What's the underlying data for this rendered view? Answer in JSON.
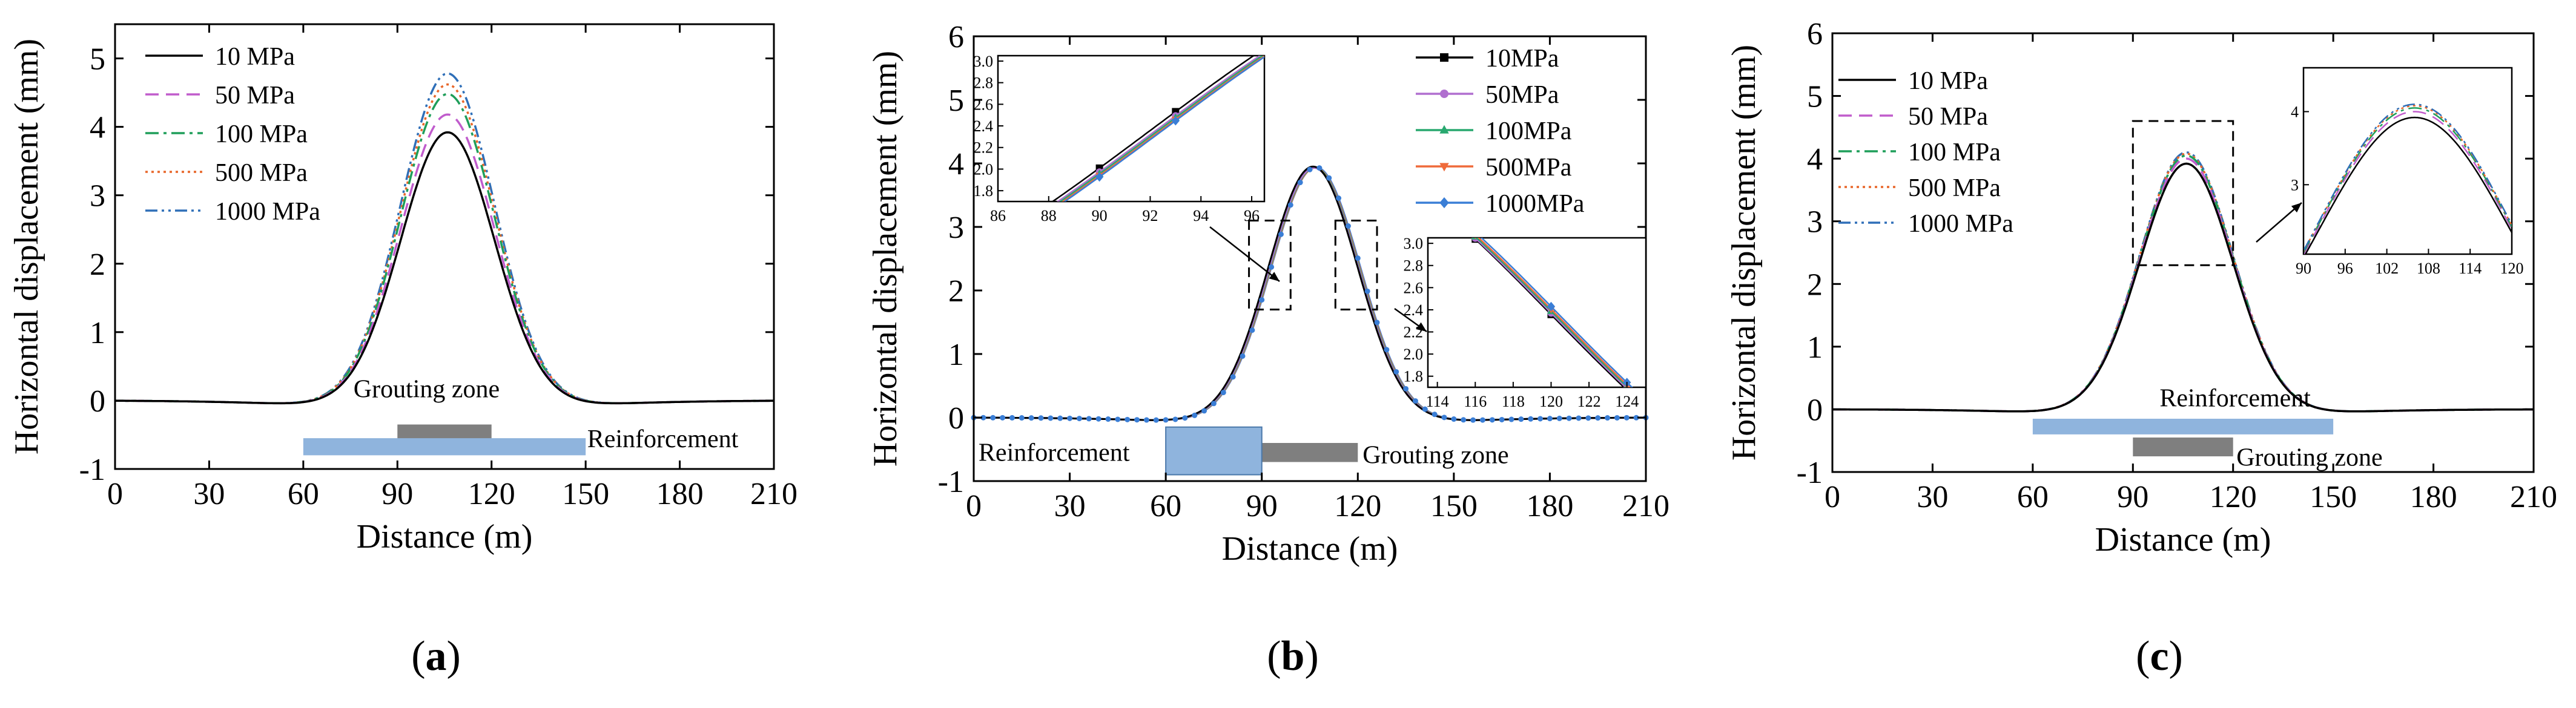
{
  "chart_data": [
    {
      "id": "a",
      "type": "line",
      "panel_label": "a",
      "xlabel": "Distance (m)",
      "ylabel": "Horizontal displacement (mm)",
      "xlim": [
        0,
        210
      ],
      "ylim": [
        -1,
        5.5
      ],
      "xticks": [
        0,
        30,
        60,
        90,
        120,
        150,
        180,
        210
      ],
      "yticks": [
        -1,
        0,
        1,
        2,
        3,
        4,
        5
      ],
      "legend_position": "top-left",
      "curve_model": {
        "center": 106,
        "sigma": 15,
        "trough": -0.12
      },
      "series": [
        {
          "name": "10 MPa",
          "peak": 3.92,
          "color": "#000000",
          "dash": "solid"
        },
        {
          "name": "50 MPa",
          "peak": 4.18,
          "color": "#c05ccc",
          "dash": "dash"
        },
        {
          "name": "100 MPa",
          "peak": 4.48,
          "color": "#1f9e5a",
          "dash": "dashdot"
        },
        {
          "name": "500 MPa",
          "peak": 4.62,
          "color": "#e8672a",
          "dash": "dot"
        },
        {
          "name": "1000 MPa",
          "peak": 4.78,
          "color": "#2f6fb8",
          "dash": "dashdotdot"
        }
      ],
      "zones": [
        {
          "label": "Grouting zone",
          "x0": 90,
          "x1": 120,
          "y0": -0.35,
          "y1": -0.6,
          "color": "#7f7f7f",
          "label_x": 76,
          "label_y": 0.05
        },
        {
          "label": "Reinforcement",
          "x0": 60,
          "x1": 150,
          "y0": -0.55,
          "y1": -0.8,
          "color": "#8fb4dd",
          "label_x": 150.5,
          "label_y": -0.68
        }
      ]
    },
    {
      "id": "b",
      "type": "line",
      "panel_label": "b",
      "xlabel": "Distance (m)",
      "ylabel": "Horizontal displacement (mm)",
      "xlim": [
        0,
        210
      ],
      "ylim": [
        -1,
        6
      ],
      "xticks": [
        0,
        30,
        60,
        90,
        120,
        150,
        180,
        210
      ],
      "yticks": [
        -1,
        0,
        1,
        2,
        3,
        4,
        5,
        6
      ],
      "legend_position": "top-right",
      "curve_model": {
        "center": 106,
        "sigma": 14,
        "trough": -0.12
      },
      "series": [
        {
          "name": "10MPa",
          "peak": 3.95,
          "color": "#000000",
          "marker": "square",
          "shift": 0
        },
        {
          "name": "50MPa",
          "peak": 3.93,
          "color": "#b06fcf",
          "marker": "circle",
          "shift": 0.3
        },
        {
          "name": "100MPa",
          "peak": 3.93,
          "color": "#28a86f",
          "marker": "triangle",
          "shift": 0.5
        },
        {
          "name": "500MPa",
          "peak": 3.93,
          "color": "#ef6a3a",
          "marker": "triangle-down",
          "shift": 0.7
        },
        {
          "name": "1000MPa",
          "peak": 3.94,
          "color": "#3a7ed6",
          "marker": "diamond",
          "shift": 0.9
        }
      ],
      "zones": [
        {
          "label": "Grouting zone",
          "x0": 90,
          "x1": 120,
          "y0": -0.4,
          "y1": -0.7,
          "color": "#7f7f7f",
          "label_x": 121.5,
          "label_y": -0.72
        },
        {
          "label": "Reinforcement",
          "x0": 60,
          "x1": 90,
          "y0": -0.15,
          "y1": -0.9,
          "color": "#8fb4dd",
          "label_x": 1.5,
          "label_y": -0.68
        }
      ],
      "insets": [
        {
          "id": "b-inset-left",
          "xlim": [
            86,
            96.5
          ],
          "ylim": [
            1.7,
            3.05
          ],
          "xticks": [
            86,
            88,
            90,
            92,
            94,
            96
          ],
          "yticks": [
            "1.8",
            "2.0",
            "2.2",
            "2.4",
            "2.6",
            "2.8",
            "3.0"
          ],
          "box": {
            "x0": 86,
            "x1": 99,
            "y0": 1.7,
            "y1": 3.1
          }
        },
        {
          "id": "b-inset-right",
          "xlim": [
            113.5,
            125
          ],
          "ylim": [
            1.7,
            3.05
          ],
          "xticks": [
            114,
            116,
            118,
            120,
            122,
            124
          ],
          "yticks": [
            "1.8",
            "2.0",
            "2.2",
            "2.4",
            "2.6",
            "2.8",
            "3.0"
          ],
          "box": {
            "x0": 113,
            "x1": 126,
            "y0": 1.7,
            "y1": 3.1
          }
        }
      ]
    },
    {
      "id": "c",
      "type": "line",
      "panel_label": "c",
      "xlabel": "Distance (m)",
      "ylabel": "Horizontal displacement (mm)",
      "xlim": [
        0,
        210
      ],
      "ylim": [
        -1,
        6
      ],
      "xticks": [
        0,
        30,
        60,
        90,
        120,
        150,
        180,
        210
      ],
      "yticks": [
        -1,
        0,
        1,
        2,
        3,
        4,
        5,
        6
      ],
      "legend_position": "top-left",
      "curve_model": {
        "center": 106,
        "sigma": 14,
        "trough": -0.1
      },
      "series": [
        {
          "name": "10 MPa",
          "peak": 3.92,
          "color": "#000000",
          "dash": "solid"
        },
        {
          "name": "50 MPa",
          "peak": 4.0,
          "color": "#c05ccc",
          "dash": "dash"
        },
        {
          "name": "100 MPa",
          "peak": 4.05,
          "color": "#1f9e5a",
          "dash": "dashdot"
        },
        {
          "name": "500 MPa",
          "peak": 4.08,
          "color": "#e8672a",
          "dash": "dot"
        },
        {
          "name": "1000 MPa",
          "peak": 4.1,
          "color": "#2f6fb8",
          "dash": "dashdotdot"
        }
      ],
      "zones": [
        {
          "label": "Reinforcement",
          "x0": 60,
          "x1": 150,
          "y0": -0.15,
          "y1": -0.4,
          "color": "#8fb4dd",
          "label_x": 98,
          "label_y": 0.05
        },
        {
          "label": "Grouting zone",
          "x0": 90,
          "x1": 120,
          "y0": -0.45,
          "y1": -0.75,
          "color": "#7f7f7f",
          "label_x": 121,
          "label_y": -0.9
        }
      ],
      "insets": [
        {
          "id": "c-inset",
          "xlim": [
            90,
            120
          ],
          "ylim": [
            2.05,
            4.6
          ],
          "xticks": [
            90,
            96,
            102,
            108,
            114,
            120
          ],
          "yticks": [
            "3",
            "4"
          ],
          "box": {
            "x0": 90,
            "x1": 120,
            "y0": 2.3,
            "y1": 4.6
          }
        }
      ]
    }
  ]
}
